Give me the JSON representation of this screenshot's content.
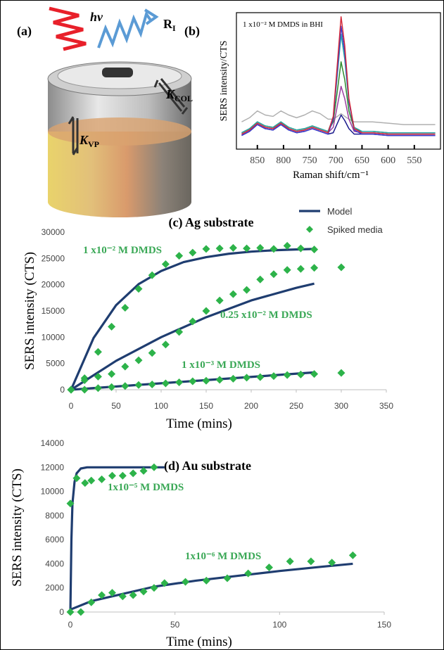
{
  "illustration": {
    "panel_label": "(a)",
    "photon": "hv",
    "reflected": {
      "main": "R",
      "sub": "I"
    },
    "k_col": {
      "main": "K",
      "sub": "COL"
    },
    "k_vp": {
      "main": "K",
      "sub": "VP"
    }
  },
  "chart_data": [
    {
      "type": "line",
      "panel_label": "(b)",
      "title": "1 x10⁻² M DMDS in BHI",
      "x_label": "Raman shift/cm⁻¹",
      "y_label": "SERS intensity/CTS",
      "x": [
        880,
        865,
        850,
        835,
        820,
        805,
        790,
        775,
        760,
        745,
        730,
        715,
        705,
        697,
        690,
        683,
        675,
        665,
        650,
        630,
        600,
        570,
        540,
        510
      ],
      "xlim": [
        890,
        500
      ],
      "xticks": [
        850,
        800,
        750,
        700,
        650,
        600,
        550
      ],
      "ylim": [
        0,
        100
      ],
      "series": [
        {
          "color": "#b0b0b0",
          "values": [
            20,
            23,
            28,
            25,
            24,
            28,
            25,
            23,
            25,
            28,
            26,
            22,
            22,
            24,
            26,
            24,
            22,
            20,
            20,
            20,
            19,
            18,
            18,
            18
          ]
        },
        {
          "color": "#1a1a8c",
          "values": [
            10,
            13,
            18,
            15,
            14,
            18,
            14,
            12,
            13,
            15,
            13,
            11,
            12,
            19,
            25,
            21,
            15,
            11,
            11,
            11,
            10,
            10,
            10,
            10
          ]
        },
        {
          "color": "#9b3fa0",
          "values": [
            11,
            14,
            19,
            16,
            15,
            19,
            15,
            13,
            14,
            16,
            14,
            12,
            16,
            32,
            46,
            37,
            22,
            13,
            12,
            12,
            11,
            11,
            11,
            11
          ]
        },
        {
          "color": "#2e8b2e",
          "values": [
            12,
            15,
            20,
            17,
            16,
            20,
            16,
            14,
            15,
            17,
            15,
            13,
            20,
            43,
            64,
            51,
            28,
            15,
            13,
            13,
            12,
            12,
            12,
            12
          ]
        },
        {
          "color": "#2aa5a5",
          "values": [
            12,
            15,
            20,
            17,
            16,
            20,
            16,
            14,
            15,
            17,
            15,
            13,
            23,
            55,
            84,
            66,
            34,
            16,
            13,
            13,
            12,
            12,
            12,
            12
          ]
        },
        {
          "color": "#3b3bcc",
          "values": [
            10,
            13,
            18,
            15,
            14,
            18,
            14,
            12,
            13,
            15,
            13,
            11,
            22,
            58,
            90,
            71,
            35,
            14,
            11,
            11,
            10,
            10,
            10,
            10
          ]
        },
        {
          "color": "#d42a3a",
          "values": [
            11,
            14,
            19,
            16,
            15,
            19,
            15,
            13,
            14,
            16,
            14,
            12,
            24,
            63,
            97,
            76,
            37,
            15,
            12,
            12,
            11,
            11,
            11,
            11
          ]
        }
      ]
    },
    {
      "type": "scatter",
      "title": "(c) Ag substrate",
      "x_label": "Time (mins)",
      "y_label": "SERS intensity (CTS)",
      "xlim": [
        0,
        350
      ],
      "xticks": [
        0,
        50,
        100,
        150,
        200,
        250,
        300,
        350
      ],
      "ylim": [
        0,
        30000
      ],
      "yticks": [
        0,
        5000,
        10000,
        15000,
        20000,
        25000,
        30000
      ],
      "legend": [
        {
          "name": "Model",
          "color": "#1f3d70",
          "marker": "line"
        },
        {
          "name": "Spiked media",
          "color": "#2db34a",
          "marker": "diamond"
        }
      ],
      "annotations": [
        "1 x10⁻² M DMDS",
        "0.25 x10⁻² M DMDS",
        "1 x10⁻³ M DMDS"
      ],
      "series": [
        {
          "kind": "line",
          "color": "#1f3d70",
          "x": [
            0,
            25,
            50,
            75,
            100,
            125,
            150,
            175,
            200,
            225,
            250,
            270
          ],
          "values": [
            0,
            9850,
            16100,
            20100,
            22600,
            24300,
            25240,
            25880,
            26290,
            26550,
            26700,
            26800
          ]
        },
        {
          "kind": "scatter",
          "color": "#2db34a",
          "x": [
            0,
            15,
            30,
            45,
            60,
            75,
            90,
            105,
            120,
            135,
            150,
            165,
            180,
            195,
            210,
            225,
            240,
            255,
            270
          ],
          "values": [
            0,
            2200,
            7200,
            12000,
            15600,
            19200,
            21800,
            23900,
            25500,
            26100,
            26800,
            26900,
            27000,
            26900,
            27000,
            26800,
            27400,
            26900,
            26700
          ]
        },
        {
          "kind": "line",
          "color": "#1f3d70",
          "x": [
            0,
            50,
            100,
            150,
            200,
            250,
            270
          ],
          "values": [
            0,
            5500,
            10000,
            13800,
            17000,
            19400,
            20200
          ]
        },
        {
          "kind": "scatter",
          "color": "#2db34a",
          "x": [
            0,
            15,
            30,
            45,
            60,
            75,
            90,
            105,
            120,
            135,
            150,
            165,
            180,
            195,
            210,
            225,
            240,
            255,
            270,
            300
          ],
          "values": [
            0,
            1800,
            2500,
            3000,
            4400,
            5600,
            7000,
            8600,
            11000,
            13000,
            15000,
            17000,
            18200,
            19000,
            21000,
            22000,
            22800,
            23000,
            23200,
            23300
          ]
        },
        {
          "kind": "line",
          "color": "#1f3d70",
          "x": [
            0,
            270
          ],
          "values": [
            0,
            3300
          ]
        },
        {
          "kind": "scatter",
          "color": "#2db34a",
          "x": [
            0,
            15,
            30,
            45,
            60,
            75,
            90,
            105,
            120,
            135,
            150,
            165,
            180,
            195,
            210,
            225,
            240,
            255,
            270,
            300
          ],
          "values": [
            0,
            0,
            300,
            500,
            700,
            900,
            1000,
            1200,
            1400,
            1600,
            1700,
            1900,
            2100,
            2300,
            2400,
            2600,
            2800,
            2900,
            3000,
            3200
          ]
        }
      ]
    },
    {
      "type": "scatter",
      "title": "(d) Au substrate",
      "x_label": "Time (mins)",
      "y_label": "SERS intensity (CTS)",
      "xlim": [
        0,
        150
      ],
      "xticks": [
        0,
        50,
        100,
        150
      ],
      "ylim": [
        0,
        14000
      ],
      "yticks": [
        0,
        2000,
        4000,
        6000,
        8000,
        10000,
        12000,
        14000
      ],
      "annotations": [
        "1x10⁻⁵ M DMDS",
        "1x10⁻⁶ M DMDS"
      ],
      "series": [
        {
          "kind": "line",
          "color": "#1f3d70",
          "x": [
            0,
            0.5,
            1,
            2,
            3,
            5,
            8,
            12,
            20,
            45
          ],
          "values": [
            0,
            6000,
            9000,
            10800,
            11500,
            11900,
            12000,
            12000,
            12000,
            12000
          ]
        },
        {
          "kind": "scatter",
          "color": "#2db34a",
          "x": [
            0,
            3,
            7,
            10,
            15,
            20,
            25,
            30,
            35,
            40
          ],
          "values": [
            9000,
            11100,
            10700,
            10900,
            11000,
            11300,
            11300,
            11500,
            11700,
            12000
          ]
        },
        {
          "kind": "line",
          "color": "#1f3d70",
          "x": [
            0,
            10,
            20,
            40,
            60,
            80,
            100,
            120,
            135
          ],
          "values": [
            200,
            900,
            1300,
            2100,
            2600,
            3000,
            3400,
            3750,
            4000
          ]
        },
        {
          "kind": "scatter",
          "color": "#2db34a",
          "x": [
            0,
            5,
            10,
            15,
            20,
            25,
            30,
            35,
            40,
            45,
            55,
            65,
            75,
            85,
            95,
            105,
            115,
            125,
            135
          ],
          "values": [
            0,
            0,
            800,
            1400,
            1600,
            1300,
            1400,
            1700,
            2000,
            2400,
            2500,
            2600,
            2800,
            3200,
            3700,
            4200,
            4200,
            4100,
            4700
          ]
        }
      ]
    }
  ]
}
